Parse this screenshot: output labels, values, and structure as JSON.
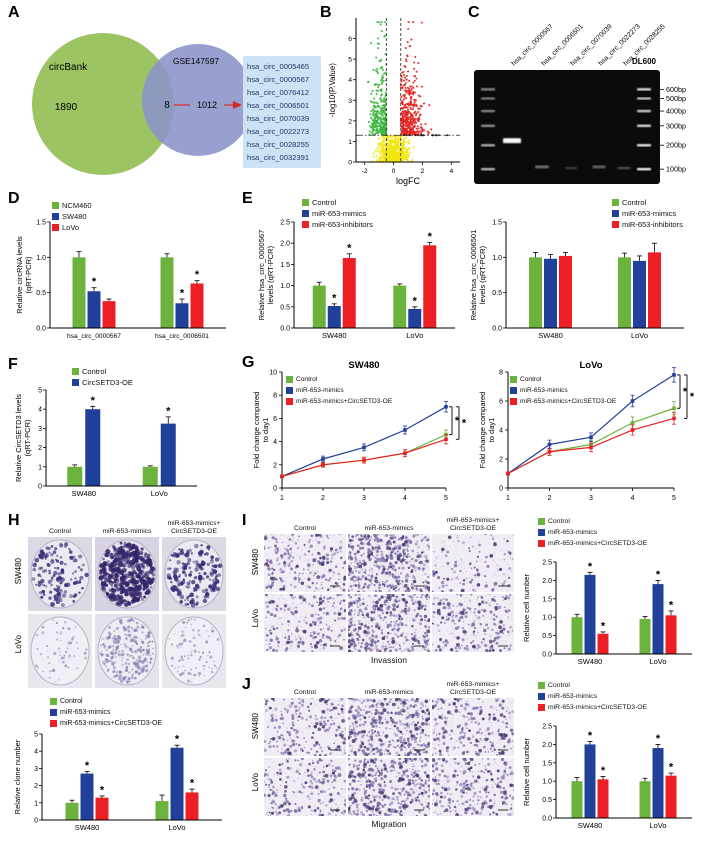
{
  "colors": {
    "green": "#6CB33E",
    "blue": "#21409A",
    "red": "#EC2024"
  },
  "panel_labels": {
    "A": "A",
    "B": "B",
    "C": "C",
    "D": "D",
    "E": "E",
    "F": "F",
    "G": "G",
    "H": "H",
    "I": "I",
    "J": "J"
  },
  "panelA": {
    "venn": {
      "left_label": "circBank",
      "left_count": "1890",
      "overlap_count": "8",
      "right_label": "GSE147597",
      "right_count": "1012",
      "left_color": "#9CC462",
      "right_color": "#8B93C9",
      "arrow_color": "#D42A26"
    },
    "list_items": [
      "hsa_circ_0005465",
      "hsa_circ_0000567",
      "hsa_circ_0076412",
      "hsa_circ_0006501",
      "hsa_circ_0070039",
      "hsa_circ_0022273",
      "hsa_circ_0028255",
      "hsa_circ_0032391"
    ]
  },
  "panelC": {
    "lane_labels": [
      "hsa_circ_0000567",
      "hsa_circ_0006501",
      "hsa_circ_0070039",
      "hsa_circ_0022273",
      "hsa_circ_0028255"
    ],
    "ladder_label": "DL600",
    "size_labels": [
      "600bp",
      "500bp",
      "400bp",
      "300bp",
      "200bp",
      "100bp"
    ],
    "ladder_fracs": [
      0.17,
      0.25,
      0.36,
      0.49,
      0.66,
      0.87
    ],
    "sample_bands": [
      {
        "lane": 0,
        "frac": 0.62,
        "intensity": 0.97,
        "w": 18,
        "h": 5
      },
      {
        "lane": 1,
        "frac": 0.85,
        "intensity": 0.4,
        "w": 14,
        "h": 3
      },
      {
        "lane": 2,
        "frac": 0.86,
        "intensity": 0.2,
        "w": 12,
        "h": 2.5
      },
      {
        "lane": 3,
        "frac": 0.85,
        "intensity": 0.35,
        "w": 13,
        "h": 3
      },
      {
        "lane": 4,
        "frac": 0.86,
        "intensity": 0.28,
        "w": 13,
        "h": 2.5
      }
    ]
  },
  "panelH": {
    "col_labels": [
      "Control",
      "miR-653-mimics",
      "miR-653-mimics+\nCircSETD3-OE"
    ],
    "row_labels": [
      "SW480",
      "LoVo"
    ],
    "cells": [
      [
        {
          "seed": 101,
          "n": 130,
          "rmin": 1.0,
          "rmax": 2.4,
          "color": "#3A2A78",
          "bg": "#DCD8E4",
          "pf": "#ECEAF1"
        },
        {
          "seed": 102,
          "n": 430,
          "rmin": 1.0,
          "rmax": 2.6,
          "color": "#342368",
          "bg": "#D8D3E2",
          "pf": "#E7E3EE"
        },
        {
          "seed": 103,
          "n": 170,
          "rmin": 1.0,
          "rmax": 2.4,
          "color": "#3A2A78",
          "bg": "#DCD8E4",
          "pf": "#ECEAF1"
        }
      ],
      [
        {
          "seed": 104,
          "n": 60,
          "rmin": 0.6,
          "rmax": 1.6,
          "color": "#9C93BF",
          "bg": "#E9E6EE",
          "pf": "#F1EFF5"
        },
        {
          "seed": 105,
          "n": 240,
          "rmin": 0.6,
          "rmax": 1.8,
          "color": "#8F85B8",
          "bg": "#E6E2EC",
          "pf": "#EFEDF3"
        },
        {
          "seed": 106,
          "n": 90,
          "rmin": 0.6,
          "rmax": 1.6,
          "color": "#9C93BF",
          "bg": "#E9E6EE",
          "pf": "#F1EFF5"
        }
      ]
    ]
  },
  "panelI": {
    "col_labels": [
      "Control",
      "miR-653-mimics",
      "miR-653-mimics+\nCircSETD3-OE"
    ],
    "row_labels": [
      "SW480",
      "LoVo"
    ],
    "caption": "Invassion",
    "cells": [
      [
        {
          "seed": 201,
          "n": 150
        },
        {
          "seed": 202,
          "n": 330
        },
        {
          "seed": 203,
          "n": 75
        }
      ],
      [
        {
          "seed": 204,
          "n": 140
        },
        {
          "seed": 205,
          "n": 290
        },
        {
          "seed": 206,
          "n": 150
        }
      ]
    ]
  },
  "panelJ": {
    "col_labels": [
      "Control",
      "miR-653-mimics",
      "miR-653-mimics+\nCircSETD3-OE"
    ],
    "row_labels": [
      "SW480",
      "LoVo"
    ],
    "caption": "Migration",
    "cells": [
      [
        {
          "seed": 301,
          "n": 150
        },
        {
          "seed": 302,
          "n": 310
        },
        {
          "seed": 303,
          "n": 160
        }
      ],
      [
        {
          "seed": 304,
          "n": 145
        },
        {
          "seed": 305,
          "n": 290
        },
        {
          "seed": 306,
          "n": 175
        }
      ]
    ]
  },
  "chart_data": [
    {
      "id": "volcano",
      "type": "scatter",
      "xlabel": "logFC",
      "ylabel": "-log10(P.Value)",
      "xlim": [
        -2.6,
        4.6
      ],
      "ylim": [
        0,
        7
      ],
      "xticks": [
        -2,
        0,
        2,
        4
      ],
      "yticks": [
        0,
        1,
        2,
        3,
        4,
        5,
        6
      ],
      "thresholds": {
        "x": [
          -0.5,
          0.5
        ],
        "y": 1.3
      },
      "groups": [
        {
          "name": "not-significant",
          "color": "#F2E50B",
          "n": 550,
          "kind": "ns"
        },
        {
          "name": "down-regulated",
          "color": "#3DB53D",
          "n": 300,
          "kind": "down"
        },
        {
          "name": "up-regulated",
          "color": "#E4231F",
          "n": 380,
          "kind": "up"
        },
        {
          "name": "threshold-points",
          "color": "#151515",
          "n": 16,
          "kind": "line"
        }
      ]
    },
    {
      "id": "D",
      "type": "bar",
      "ylabel": "Relative circRNA levels\n(qRT-PCR)",
      "categories": [
        "hsa_circ_0000567",
        "hsa_circ_0006501"
      ],
      "ylim": [
        0,
        1.5
      ],
      "yticks": [
        0,
        0.5,
        1,
        1.5
      ],
      "series": [
        {
          "name": "NCM460",
          "color": "#6CB33E",
          "values": [
            1.0,
            1.0
          ],
          "errors": [
            0.08,
            0.05
          ],
          "sig": [
            false,
            false
          ]
        },
        {
          "name": "SW480",
          "color": "#21409A",
          "values": [
            0.52,
            0.35
          ],
          "errors": [
            0.05,
            0.06
          ],
          "sig": [
            true,
            true
          ]
        },
        {
          "name": "LoVo",
          "color": "#EC2024",
          "values": [
            0.38,
            0.63
          ],
          "errors": [
            0.03,
            0.04
          ],
          "sig": [
            false,
            true
          ]
        }
      ]
    },
    {
      "id": "E1",
      "type": "bar",
      "ylabel": "Relative hsa_circ_0000567\nlevels (qRT-PCR)",
      "categories": [
        "SW480",
        "LoVo"
      ],
      "ylim": [
        0,
        2.5
      ],
      "yticks": [
        0,
        0.5,
        1,
        1.5,
        2,
        2.5
      ],
      "series": [
        {
          "name": "Control",
          "color": "#6CB33E",
          "values": [
            1.0,
            1.0
          ],
          "errors": [
            0.08,
            0.04
          ],
          "sig": [
            false,
            false
          ]
        },
        {
          "name": "miR-653-mimics",
          "color": "#21409A",
          "values": [
            0.52,
            0.45
          ],
          "errors": [
            0.05,
            0.05
          ],
          "sig": [
            true,
            true
          ]
        },
        {
          "name": "miR-653-inhibitors",
          "color": "#EC2024",
          "values": [
            1.65,
            1.95
          ],
          "errors": [
            0.1,
            0.07
          ],
          "sig": [
            true,
            true
          ]
        }
      ]
    },
    {
      "id": "E2",
      "type": "bar",
      "ylabel": "Relative hsa_circ_0006501\nlevels (qRT-PCR)",
      "categories": [
        "SW480",
        "LoVo"
      ],
      "ylim": [
        0,
        1.5
      ],
      "yticks": [
        0,
        0.5,
        1,
        1.5
      ],
      "series": [
        {
          "name": "Control",
          "color": "#6CB33E",
          "values": [
            1.0,
            1.0
          ],
          "errors": [
            0.07,
            0.06
          ],
          "sig": [
            false,
            false
          ]
        },
        {
          "name": "miR-653-mimics",
          "color": "#21409A",
          "values": [
            0.98,
            0.95
          ],
          "errors": [
            0.06,
            0.07
          ],
          "sig": [
            false,
            false
          ]
        },
        {
          "name": "miR-653-inhibitors",
          "color": "#EC2024",
          "values": [
            1.02,
            1.07
          ],
          "errors": [
            0.05,
            0.13
          ],
          "sig": [
            false,
            false
          ]
        }
      ]
    },
    {
      "id": "F",
      "type": "bar",
      "ylabel": "Relative CircSETD3 levels\n(qRT-PCR)",
      "categories": [
        "SW480",
        "LoVo"
      ],
      "ylim": [
        0,
        5
      ],
      "yticks": [
        0,
        1,
        2,
        3,
        4,
        5
      ],
      "series": [
        {
          "name": "Control",
          "color": "#6CB33E",
          "values": [
            1.0,
            1.0
          ],
          "errors": [
            0.1,
            0.05
          ],
          "sig": [
            false,
            false
          ]
        },
        {
          "name": "CircSETD3-OE",
          "color": "#21409A",
          "values": [
            4.0,
            3.25
          ],
          "errors": [
            0.15,
            0.35
          ],
          "sig": [
            true,
            true
          ]
        }
      ]
    },
    {
      "id": "G1",
      "type": "line",
      "title": "SW480",
      "ylabel": "Fold change compared\nto day1",
      "x": [
        1,
        2,
        3,
        4,
        5
      ],
      "xticks": [
        1,
        2,
        3,
        4,
        5
      ],
      "ylim": [
        0,
        10
      ],
      "yticks": [
        0,
        2,
        4,
        6,
        8,
        10
      ],
      "series": [
        {
          "name": "Control",
          "color": "#6CB33E",
          "values": [
            1,
            2,
            2.4,
            3,
            4.6
          ],
          "errors": [
            0.1,
            0.2,
            0.25,
            0.3,
            0.4
          ]
        },
        {
          "name": "miR-653-mimics",
          "color": "#21409A",
          "values": [
            1,
            2.5,
            3.5,
            5,
            7
          ],
          "errors": [
            0.1,
            0.25,
            0.3,
            0.35,
            0.45
          ]
        },
        {
          "name": "miR-653-mimics+CircSETD3-OE",
          "color": "#EC2024",
          "values": [
            1,
            2,
            2.4,
            3,
            4.2
          ],
          "errors": [
            0.1,
            0.2,
            0.25,
            0.3,
            0.4
          ]
        }
      ],
      "brackets": [
        {
          "a": 1,
          "b": 0,
          "dx": 6,
          "label": "*"
        },
        {
          "a": 1,
          "b": 2,
          "dx": 13,
          "label": "*"
        }
      ]
    },
    {
      "id": "G2",
      "type": "line",
      "title": "LoVo",
      "ylabel": "Fold change compared\nto day1",
      "x": [
        1,
        2,
        3,
        4,
        5
      ],
      "xticks": [
        1,
        2,
        3,
        4,
        5
      ],
      "ylim": [
        0,
        8
      ],
      "yticks": [
        0,
        2,
        4,
        6,
        8
      ],
      "series": [
        {
          "name": "Control",
          "color": "#6CB33E",
          "values": [
            1,
            2.5,
            3,
            4.5,
            5.5
          ],
          "errors": [
            0.1,
            0.25,
            0.3,
            0.4,
            0.45
          ]
        },
        {
          "name": "miR-653-mimics",
          "color": "#21409A",
          "values": [
            1,
            3,
            3.5,
            6,
            7.8
          ],
          "errors": [
            0.1,
            0.3,
            0.3,
            0.4,
            0.5
          ]
        },
        {
          "name": "miR-653-mimics+CircSETD3-OE",
          "color": "#EC2024",
          "values": [
            1,
            2.5,
            2.8,
            4,
            4.8
          ],
          "errors": [
            0.1,
            0.25,
            0.3,
            0.35,
            0.4
          ]
        }
      ],
      "brackets": [
        {
          "a": 1,
          "b": 0,
          "dx": 6,
          "label": "*"
        },
        {
          "a": 1,
          "b": 2,
          "dx": 13,
          "label": "*"
        }
      ]
    },
    {
      "id": "H",
      "type": "bar",
      "ylabel": "Relative clone number",
      "categories": [
        "SW480",
        "LoVo"
      ],
      "ylim": [
        0,
        5
      ],
      "yticks": [
        0,
        1,
        2,
        3,
        4,
        5
      ],
      "series": [
        {
          "name": "Control",
          "color": "#6CB33E",
          "values": [
            1.0,
            1.1
          ],
          "errors": [
            0.15,
            0.35
          ],
          "sig": [
            false,
            false
          ]
        },
        {
          "name": "miR-653-mimics",
          "color": "#21409A",
          "values": [
            2.7,
            4.2
          ],
          "errors": [
            0.12,
            0.15
          ],
          "sig": [
            true,
            true
          ]
        },
        {
          "name": "miR-653-mimics+CircSETD3-OE",
          "color": "#EC2024",
          "values": [
            1.3,
            1.6
          ],
          "errors": [
            0.1,
            0.2
          ],
          "sig": [
            true,
            true
          ]
        }
      ]
    },
    {
      "id": "I",
      "type": "bar",
      "ylabel": "Relative cell number",
      "categories": [
        "SW480",
        "LoVo"
      ],
      "ylim": [
        0,
        2.5
      ],
      "yticks": [
        0,
        0.5,
        1,
        1.5,
        2,
        2.5
      ],
      "series": [
        {
          "name": "Control",
          "color": "#6CB33E",
          "values": [
            1.0,
            0.95
          ],
          "errors": [
            0.08,
            0.07
          ],
          "sig": [
            false,
            false
          ]
        },
        {
          "name": "miR-653-mimics",
          "color": "#21409A",
          "values": [
            2.15,
            1.9
          ],
          "errors": [
            0.07,
            0.1
          ],
          "sig": [
            true,
            true
          ]
        },
        {
          "name": "miR-653-mimics+CircSETD3-OE",
          "color": "#EC2024",
          "values": [
            0.55,
            1.05
          ],
          "errors": [
            0.05,
            0.12
          ],
          "sig": [
            true,
            true
          ]
        }
      ]
    },
    {
      "id": "J",
      "type": "bar",
      "ylabel": "Relative cell number",
      "categories": [
        "SW480",
        "LoVo"
      ],
      "ylim": [
        0,
        2.5
      ],
      "yticks": [
        0,
        0.5,
        1,
        1.5,
        2,
        2.5
      ],
      "series": [
        {
          "name": "Control",
          "color": "#6CB33E",
          "values": [
            1.0,
            1.0
          ],
          "errors": [
            0.1,
            0.08
          ],
          "sig": [
            false,
            false
          ]
        },
        {
          "name": "miR-653-mimics",
          "color": "#21409A",
          "values": [
            2.0,
            1.9
          ],
          "errors": [
            0.08,
            0.1
          ],
          "sig": [
            true,
            true
          ]
        },
        {
          "name": "miR-653-mimics+CircSETD3-OE",
          "color": "#EC2024",
          "values": [
            1.05,
            1.15
          ],
          "errors": [
            0.08,
            0.07
          ],
          "sig": [
            true,
            true
          ]
        }
      ]
    }
  ]
}
